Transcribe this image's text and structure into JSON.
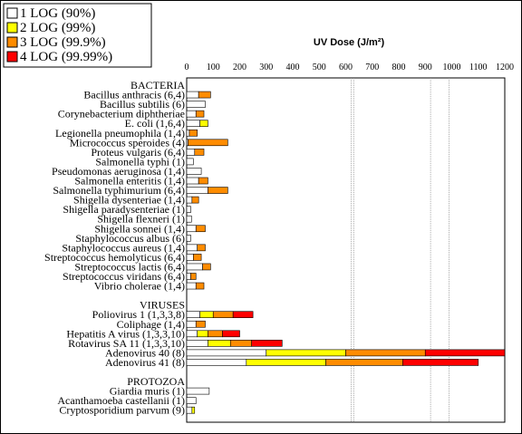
{
  "chart_data": {
    "type": "bar",
    "stacked": true,
    "orientation": "horizontal",
    "axis_title": "UV Dose (J/m²)",
    "xlim": [
      0,
      1200
    ],
    "xticks": [
      0,
      100,
      200,
      300,
      400,
      500,
      600,
      700,
      800,
      900,
      1000,
      1100,
      1200
    ],
    "reference_lines": [
      620,
      630,
      920,
      990
    ],
    "legend": [
      {
        "label": "1 LOG (90%)",
        "color": "#ffffff"
      },
      {
        "label": "2 LOG (99%)",
        "color": "#ffff00"
      },
      {
        "label": "3 LOG (99.9%)",
        "color": "#ff8c00"
      },
      {
        "label": "4 LOG (99.99%)",
        "color": "#ff0000"
      }
    ],
    "groups": [
      {
        "name": "BACTERIA",
        "rows": [
          {
            "label": "Bacillus anthracis (6,4)",
            "values": [
              45,
              0,
              45,
              0
            ]
          },
          {
            "label": "Bacillus subtilis (6)",
            "values": [
              70,
              0,
              0,
              0
            ]
          },
          {
            "label": "Corynebacterium diphtheriae",
            "values": [
              35,
              0,
              30,
              0
            ]
          },
          {
            "label": "E. coli (1,6,4)",
            "values": [
              50,
              30,
              0,
              0
            ]
          },
          {
            "label": "Legionella pneumophila (1,4)",
            "values": [
              10,
              0,
              30,
              0
            ]
          },
          {
            "label": "Micrococcus speroides (4)",
            "values": [
              5,
              0,
              150,
              0
            ]
          },
          {
            "label": "Proteus vulgaris (6,4)",
            "values": [
              30,
              0,
              35,
              0
            ]
          },
          {
            "label": "Salmonella typhi (1)",
            "values": [
              25,
              0,
              0,
              0
            ]
          },
          {
            "label": "Pseudomonas aeruginosa (1,4)",
            "values": [
              55,
              0,
              0,
              0
            ]
          },
          {
            "label": "Salmonella enteritis (1,4)",
            "values": [
              45,
              0,
              35,
              0
            ]
          },
          {
            "label": "Salmonella typhimurium (6,4)",
            "values": [
              80,
              0,
              75,
              0
            ]
          },
          {
            "label": "Shigella dysenteriae (1,4)",
            "values": [
              20,
              0,
              25,
              0
            ]
          },
          {
            "label": "Shigella paradysenteriae (1)",
            "values": [
              15,
              0,
              0,
              0
            ]
          },
          {
            "label": "Shigella flexneri (1)",
            "values": [
              18,
              0,
              0,
              0
            ]
          },
          {
            "label": "Shigella sonnei (1,4)",
            "values": [
              35,
              0,
              35,
              0
            ]
          },
          {
            "label": "Staphylococcus albus (6)",
            "values": [
              15,
              0,
              0,
              0
            ]
          },
          {
            "label": "Staphylococcus aureus (1,4)",
            "values": [
              40,
              0,
              30,
              0
            ]
          },
          {
            "label": "Streptococcus hemolyticus (6,4)",
            "values": [
              25,
              0,
              30,
              0
            ]
          },
          {
            "label": "Streptococcus lactis (6,4)",
            "values": [
              60,
              0,
              30,
              0
            ]
          },
          {
            "label": "Streptococcus viridans (6,4)",
            "values": [
              15,
              0,
              20,
              0
            ]
          },
          {
            "label": "Vibrio cholerae (1,4)",
            "values": [
              35,
              0,
              30,
              0
            ]
          }
        ]
      },
      {
        "name": "VIRUSES",
        "rows": [
          {
            "label": "Poliovirus 1 (1,3,3,8)",
            "values": [
              50,
              50,
              75,
              75
            ]
          },
          {
            "label": "Coliphage (1,4)",
            "values": [
              35,
              0,
              35,
              0
            ]
          },
          {
            "label": "Hepatitis A virus (1,3,3,10)",
            "values": [
              40,
              40,
              55,
              65
            ]
          },
          {
            "label": "Rotavirus SA 11 (1,3,3,10)",
            "values": [
              80,
              85,
              80,
              115
            ]
          },
          {
            "label": "Adenovirus 40 (8)",
            "values": [
              300,
              300,
              300,
              300
            ]
          },
          {
            "label": "Adenovirus 41 (8)",
            "values": [
              225,
              300,
              290,
              285
            ]
          }
        ]
      },
      {
        "name": "PROTOZOA",
        "rows": [
          {
            "label": "Giardia muris (1)",
            "values": [
              85,
              0,
              0,
              0
            ]
          },
          {
            "label": "Acanthamoeba castellanii (1)",
            "values": [
              35,
              0,
              0,
              0
            ]
          },
          {
            "label": "Cryptosporidium parvum (9)",
            "values": [
              20,
              10,
              0,
              0
            ]
          }
        ]
      }
    ]
  }
}
